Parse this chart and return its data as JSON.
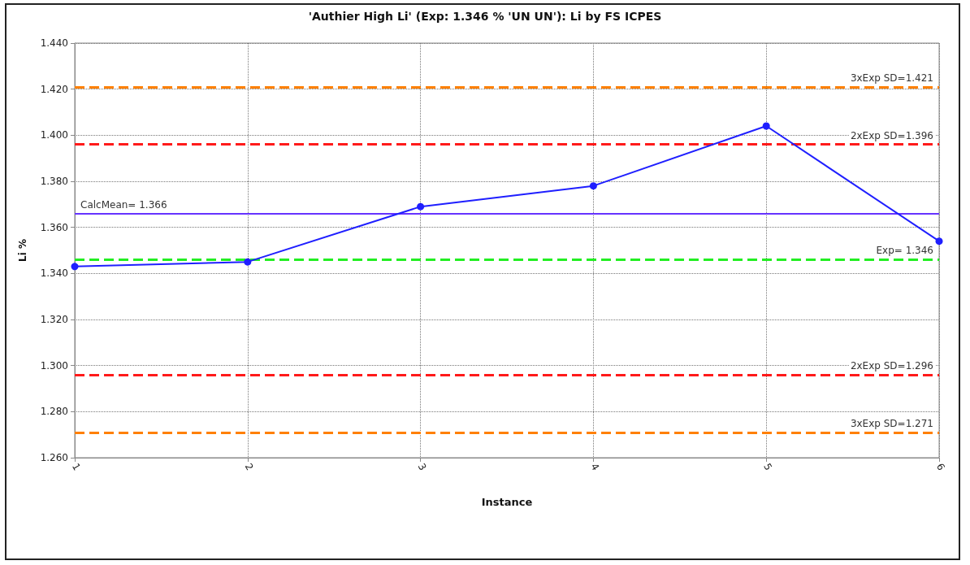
{
  "chart_data": {
    "type": "line",
    "title": "'Authier High Li' (Exp: 1.346 % 'UN UN'): Li by FS ICPES",
    "xlabel": "Instance",
    "ylabel": "Li %",
    "x": [
      1,
      2,
      3,
      4,
      5,
      6
    ],
    "series": [
      {
        "color": "#1f1fff",
        "values": [
          1.343,
          1.345,
          1.369,
          1.378,
          1.404,
          1.354
        ]
      }
    ],
    "xlim": [
      1,
      6
    ],
    "xticks": [
      1,
      2,
      3,
      4,
      5,
      6
    ],
    "ylim": [
      1.26,
      1.44
    ],
    "yticks": [
      {
        "value": 1.26,
        "label": "1.260"
      },
      {
        "value": 1.28,
        "label": "1.280"
      },
      {
        "value": 1.3,
        "label": "1.300"
      },
      {
        "value": 1.32,
        "label": "1.320"
      },
      {
        "value": 1.34,
        "label": "1.340"
      },
      {
        "value": 1.36,
        "label": "1.360"
      },
      {
        "value": 1.38,
        "label": "1.380"
      },
      {
        "value": 1.4,
        "label": "1.400"
      },
      {
        "value": 1.42,
        "label": "1.420"
      },
      {
        "value": 1.44,
        "label": "1.440"
      }
    ],
    "ref_lines": [
      {
        "axis": "y",
        "value": 1.421,
        "label": "3xExp SD=1.421",
        "color": "#ff8000",
        "line_style": "dashed"
      },
      {
        "axis": "y",
        "value": 1.396,
        "label": "2xExp SD=1.396",
        "color": "#ff1a1a",
        "line_style": "dashed"
      },
      {
        "axis": "y",
        "value": 1.366,
        "label": "CalcMean= 1.366",
        "color": "#6633ff",
        "line_style": "solid"
      },
      {
        "axis": "y",
        "value": 1.346,
        "label": "Exp= 1.346",
        "color": "#22ee22",
        "line_style": "dashed"
      },
      {
        "axis": "y",
        "value": 1.296,
        "label": "2xExp SD=1.296",
        "color": "#ff1a1a",
        "line_style": "dashed"
      },
      {
        "axis": "y",
        "value": 1.271,
        "label": "3xExp SD=1.271",
        "color": "#ff8000",
        "line_style": "dashed"
      }
    ],
    "grid": true,
    "marker": "circle",
    "line_style": "solid"
  }
}
